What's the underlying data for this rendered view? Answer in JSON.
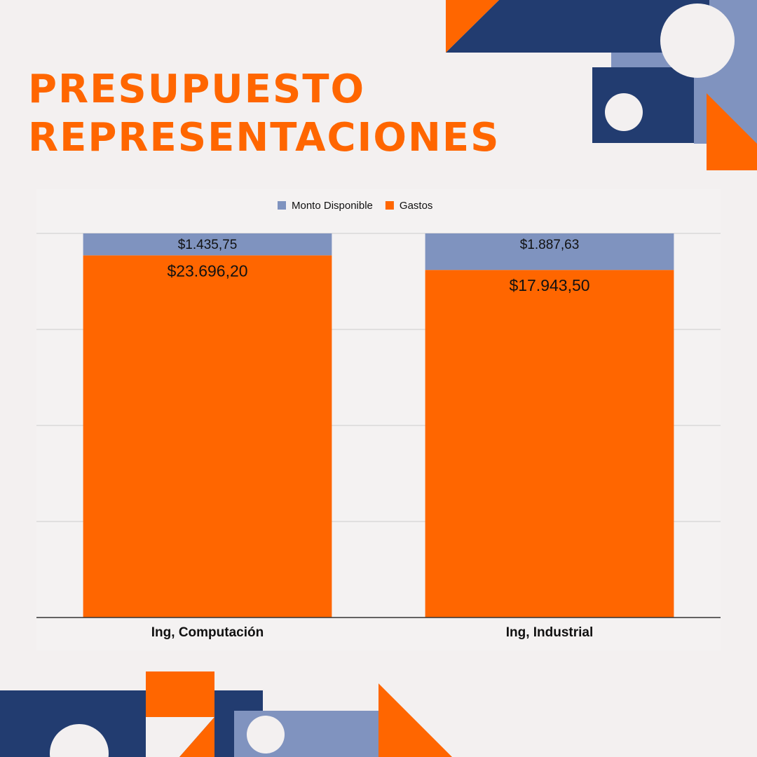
{
  "chart_data": {
    "type": "bar",
    "stacking": "percent",
    "title": [
      "PRESUPUESTO",
      "REPRESENTACIONES"
    ],
    "categories": [
      "Ing, Computación",
      "Ing, Industrial"
    ],
    "series": [
      {
        "name": "Gastos",
        "color": "#ff6600",
        "values": [
          23696.2,
          17943.5
        ],
        "value_labels": [
          "$23.696,20",
          "$17.943,50"
        ]
      },
      {
        "name": "Monto Disponible",
        "color": "#7f93bf",
        "values": [
          1435.75,
          1887.63
        ],
        "value_labels": [
          "$1.435,75",
          "$1.887,63"
        ]
      }
    ],
    "legend_order": [
      1,
      0
    ],
    "ylim": [
      0,
      100
    ],
    "yticks": [
      0,
      25,
      50,
      75,
      100
    ],
    "show_ytick_labels": false,
    "grid": true
  }
}
